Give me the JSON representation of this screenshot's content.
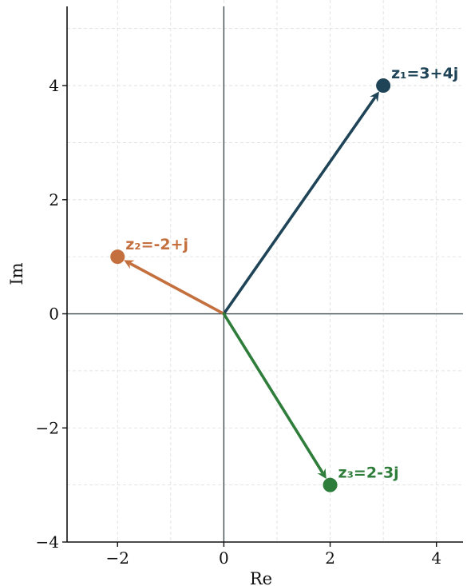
{
  "chart_data": {
    "type": "scatter",
    "title": "",
    "xlabel": "Re",
    "ylabel": "Im",
    "xlim": [
      -2.95,
      4.5
    ],
    "ylim": [
      -4,
      5.5
    ],
    "xticks": [
      -2,
      0,
      2,
      4
    ],
    "yticks": [
      -4,
      -2,
      0,
      2,
      4
    ],
    "xtick_labels": [
      "−2",
      "0",
      "2",
      "4"
    ],
    "ytick_labels": [
      "−4",
      "−2",
      "0",
      "2",
      "4"
    ],
    "grid": true,
    "series": [
      {
        "name": "z₁=3+4j",
        "x": 3,
        "y": 4,
        "color": "#1f4457"
      },
      {
        "name": "z₂=-2+j",
        "x": -2,
        "y": 1,
        "color": "#c46f3e"
      },
      {
        "name": "z₃=2-3j",
        "x": 2,
        "y": -3,
        "color": "#2f7d3a"
      }
    ]
  }
}
